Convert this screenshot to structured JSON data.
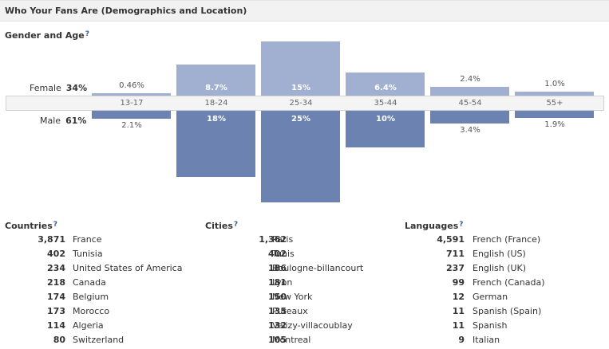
{
  "header": {
    "title": "Who Your Fans Are (Demographics and Location)"
  },
  "gender_age": {
    "title": "Gender and Age",
    "help": "?",
    "female_label": "Female",
    "female_pct": "34%",
    "male_label": "Male",
    "male_pct": "61%",
    "groups": [
      {
        "age": "13-17",
        "female": 0.46,
        "female_label": "0.46%",
        "male": 2.1,
        "male_label": "2.1%"
      },
      {
        "age": "18-24",
        "female": 8.7,
        "female_label": "8.7%",
        "male": 18,
        "male_label": "18%"
      },
      {
        "age": "25-34",
        "female": 15,
        "female_label": "15%",
        "male": 25,
        "male_label": "25%"
      },
      {
        "age": "35-44",
        "female": 6.4,
        "female_label": "6.4%",
        "male": 10,
        "male_label": "10%"
      },
      {
        "age": "45-54",
        "female": 2.4,
        "female_label": "2.4%",
        "male": 3.4,
        "male_label": "3.4%"
      },
      {
        "age": "55+",
        "female": 1.0,
        "female_label": "1.0%",
        "male": 1.9,
        "male_label": "1.9%"
      }
    ]
  },
  "countries": {
    "title": "Countries",
    "help": "?",
    "rows": [
      {
        "count": "3,871",
        "name": "France"
      },
      {
        "count": "402",
        "name": "Tunisia"
      },
      {
        "count": "234",
        "name": "United States of America"
      },
      {
        "count": "218",
        "name": "Canada"
      },
      {
        "count": "174",
        "name": "Belgium"
      },
      {
        "count": "173",
        "name": "Morocco"
      },
      {
        "count": "114",
        "name": "Algeria"
      },
      {
        "count": "80",
        "name": "Switzerland"
      }
    ]
  },
  "cities": {
    "title": "Cities",
    "help": "?",
    "rows": [
      {
        "count": "1,362",
        "name": "Paris"
      },
      {
        "count": "402",
        "name": "Tunis"
      },
      {
        "count": "186",
        "name": "Boulogne-billancourt"
      },
      {
        "count": "181",
        "name": "Lyon"
      },
      {
        "count": "150",
        "name": "New York"
      },
      {
        "count": "135",
        "name": "Puteaux"
      },
      {
        "count": "132",
        "name": "Velizy-villacoublay"
      },
      {
        "count": "105",
        "name": "Montreal"
      }
    ]
  },
  "languages": {
    "title": "Languages",
    "help": "?",
    "rows": [
      {
        "count": "4,591",
        "name": "French (France)"
      },
      {
        "count": "711",
        "name": "English (US)"
      },
      {
        "count": "237",
        "name": "English (UK)"
      },
      {
        "count": "99",
        "name": "French (Canada)"
      },
      {
        "count": "12",
        "name": "German"
      },
      {
        "count": "11",
        "name": "Spanish (Spain)"
      },
      {
        "count": "11",
        "name": "Spanish"
      },
      {
        "count": "9",
        "name": "Italian"
      }
    ]
  },
  "colors": {
    "female_bar": "#a1afd0",
    "male_bar": "#6c83b2",
    "link": "#3b5998"
  }
}
